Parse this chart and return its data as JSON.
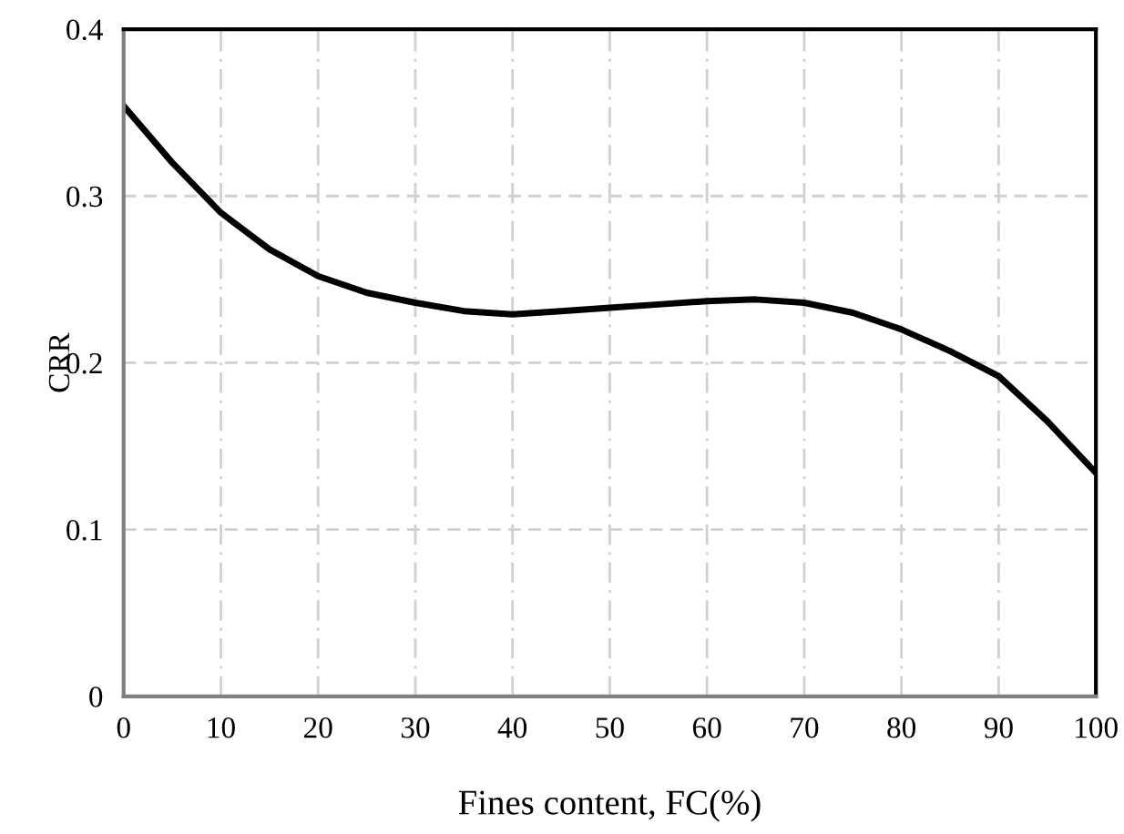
{
  "chart_data": {
    "type": "line",
    "xlabel": "Fines content, FC(%)",
    "ylabel": "CRR",
    "x": [
      0,
      5,
      10,
      15,
      20,
      25,
      30,
      35,
      40,
      45,
      50,
      55,
      60,
      65,
      70,
      75,
      80,
      85,
      90,
      95,
      100
    ],
    "series": [
      {
        "color": "#000000",
        "values": [
          0.354,
          0.32,
          0.29,
          0.268,
          0.252,
          0.242,
          0.236,
          0.231,
          0.229,
          0.231,
          0.233,
          0.235,
          0.237,
          0.238,
          0.236,
          0.23,
          0.22,
          0.207,
          0.192,
          0.165,
          0.134
        ]
      }
    ],
    "xlim": [
      0,
      100
    ],
    "ylim": [
      0,
      0.4
    ],
    "xticks": [
      0,
      10,
      20,
      30,
      40,
      50,
      60,
      70,
      80,
      90,
      100
    ],
    "yticks": [
      0,
      0.1,
      0.2,
      0.3,
      0.4
    ],
    "grid": true,
    "marker": "none",
    "line_style": "solid",
    "legend": false
  }
}
